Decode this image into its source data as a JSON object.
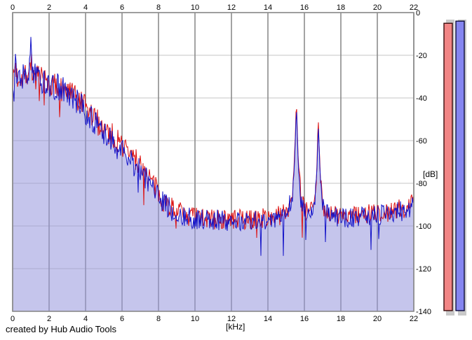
{
  "credit": "created by Hub Audio Tools",
  "chart_data": {
    "type": "line",
    "title": "",
    "xlabel": "[kHz]",
    "ylabel": "[dB]",
    "xlim": [
      0,
      22
    ],
    "ylim": [
      -140,
      0
    ],
    "x_ticks": [
      0,
      2,
      4,
      6,
      8,
      10,
      12,
      14,
      16,
      18,
      20,
      22
    ],
    "y_ticks": [
      0,
      -20,
      -40,
      -60,
      -80,
      -100,
      -120,
      -140
    ],
    "grid": true,
    "legend_position": "none",
    "description": "Dual-trace audio frequency spectrum (FFT), red and blue channels, noise-like traces with a 1 kHz hump peak, decaying slope to a ~-97 dB noise floor, and two tone spikes near 15.6 kHz and 16.8 kHz",
    "series": [
      {
        "name": "red-trace",
        "color": "#dc1212",
        "seed": 7,
        "envelope": [
          [
            0,
            -37
          ],
          [
            0.08,
            -28
          ],
          [
            0.15,
            -24
          ],
          [
            0.25,
            -31
          ],
          [
            0.4,
            -29
          ],
          [
            0.6,
            -30
          ],
          [
            0.8,
            -28
          ],
          [
            0.92,
            -27
          ],
          [
            0.97,
            -20
          ],
          [
            1.03,
            -24
          ],
          [
            1.1,
            -29
          ],
          [
            1.3,
            -31
          ],
          [
            1.6,
            -32
          ],
          [
            2,
            -34
          ],
          [
            2.5,
            -35
          ],
          [
            3,
            -37
          ],
          [
            3.5,
            -41
          ],
          [
            4,
            -45
          ],
          [
            4.5,
            -50
          ],
          [
            5,
            -54
          ],
          [
            5.5,
            -58
          ],
          [
            6,
            -62
          ],
          [
            6.5,
            -67
          ],
          [
            7,
            -71
          ],
          [
            7.5,
            -77
          ],
          [
            8,
            -85
          ],
          [
            8.5,
            -90
          ],
          [
            9,
            -93
          ],
          [
            9.5,
            -95
          ],
          [
            10,
            -96
          ],
          [
            11,
            -97
          ],
          [
            12,
            -97
          ],
          [
            13,
            -97
          ],
          [
            14,
            -96
          ],
          [
            14.7,
            -95
          ],
          [
            15.1,
            -92
          ],
          [
            15.35,
            -84
          ],
          [
            15.47,
            -66
          ],
          [
            15.56,
            -39
          ],
          [
            15.65,
            -66
          ],
          [
            15.82,
            -87
          ],
          [
            16,
            -93
          ],
          [
            16.3,
            -94
          ],
          [
            16.55,
            -89
          ],
          [
            16.68,
            -74
          ],
          [
            16.76,
            -50
          ],
          [
            16.86,
            -75
          ],
          [
            17,
            -90
          ],
          [
            17.3,
            -94
          ],
          [
            18,
            -95
          ],
          [
            19,
            -95
          ],
          [
            20,
            -94
          ],
          [
            21,
            -93
          ],
          [
            21.6,
            -91
          ],
          [
            22,
            -89
          ]
        ],
        "jitter": [
          [
            0,
            6.5
          ],
          [
            1,
            7
          ],
          [
            2,
            6.5
          ],
          [
            4,
            6.5
          ],
          [
            5,
            6
          ],
          [
            8,
            5.5
          ],
          [
            10,
            5
          ],
          [
            15.3,
            4.5
          ],
          [
            15.56,
            1.5
          ],
          [
            15.8,
            5
          ],
          [
            16.6,
            4
          ],
          [
            16.76,
            1.5
          ],
          [
            16.95,
            4.5
          ],
          [
            22,
            5
          ]
        ]
      },
      {
        "name": "blue-trace",
        "color": "#1414c8",
        "fill": "#9696dc",
        "fill_opacity": 0.55,
        "seed": 13,
        "envelope": [
          [
            0,
            -36
          ],
          [
            0.08,
            -27
          ],
          [
            0.15,
            -24
          ],
          [
            0.25,
            -30
          ],
          [
            0.4,
            -29
          ],
          [
            0.6,
            -30
          ],
          [
            0.8,
            -28
          ],
          [
            0.92,
            -26
          ],
          [
            0.97,
            -12
          ],
          [
            1.03,
            -22
          ],
          [
            1.1,
            -29
          ],
          [
            1.3,
            -31
          ],
          [
            1.6,
            -32
          ],
          [
            2,
            -34
          ],
          [
            2.5,
            -35
          ],
          [
            3,
            -38
          ],
          [
            3.5,
            -42
          ],
          [
            4,
            -46
          ],
          [
            4.5,
            -52
          ],
          [
            5,
            -57
          ],
          [
            5.5,
            -61
          ],
          [
            6,
            -65
          ],
          [
            6.5,
            -70
          ],
          [
            7,
            -74
          ],
          [
            7.5,
            -80
          ],
          [
            8,
            -87
          ],
          [
            8.5,
            -91
          ],
          [
            9,
            -94
          ],
          [
            9.5,
            -96
          ],
          [
            10,
            -97
          ],
          [
            11,
            -97
          ],
          [
            12,
            -98
          ],
          [
            13,
            -98
          ],
          [
            14,
            -97
          ],
          [
            14.7,
            -96
          ],
          [
            15.1,
            -93
          ],
          [
            15.35,
            -85
          ],
          [
            15.47,
            -68
          ],
          [
            15.56,
            -43
          ],
          [
            15.65,
            -68
          ],
          [
            15.82,
            -88
          ],
          [
            16,
            -94
          ],
          [
            16.3,
            -95
          ],
          [
            16.55,
            -90
          ],
          [
            16.68,
            -75
          ],
          [
            16.76,
            -52
          ],
          [
            16.86,
            -76
          ],
          [
            17,
            -90
          ],
          [
            17.3,
            -95
          ],
          [
            18,
            -96
          ],
          [
            19,
            -96
          ],
          [
            20,
            -95
          ],
          [
            21,
            -94
          ],
          [
            21.6,
            -92
          ],
          [
            22,
            -90
          ]
        ],
        "jitter": [
          [
            0,
            6.5
          ],
          [
            1,
            7
          ],
          [
            2,
            6.5
          ],
          [
            4,
            6.5
          ],
          [
            5,
            6
          ],
          [
            8,
            5.5
          ],
          [
            10,
            5
          ],
          [
            15.3,
            4.5
          ],
          [
            15.56,
            1.5
          ],
          [
            15.8,
            5
          ],
          [
            16.6,
            4
          ],
          [
            16.76,
            1.5
          ],
          [
            16.95,
            4.5
          ],
          [
            22,
            5
          ]
        ]
      }
    ],
    "meters": [
      {
        "name": "red-level-meter",
        "value_db": -5,
        "color": "#f28585",
        "border": "#3a0c0c",
        "track": "#c9c9c9"
      },
      {
        "name": "blue-level-meter",
        "value_db": -4,
        "color": "#8585f0",
        "border": "#0c0c3a",
        "track": "#c9c9c9"
      }
    ]
  },
  "colors": {
    "grid_vertical": "#8c8c8c",
    "grid_horizontal": "#d8d8d8",
    "plot_border": "#8c8c8c",
    "background": "#ffffff"
  }
}
